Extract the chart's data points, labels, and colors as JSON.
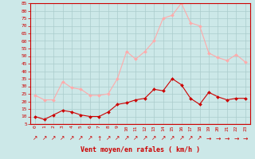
{
  "hours": [
    0,
    1,
    2,
    3,
    4,
    5,
    6,
    7,
    8,
    9,
    10,
    11,
    12,
    13,
    14,
    15,
    16,
    17,
    18,
    19,
    20,
    21,
    22,
    23
  ],
  "wind_mean": [
    10,
    8,
    11,
    14,
    13,
    11,
    10,
    10,
    13,
    18,
    19,
    21,
    22,
    28,
    27,
    35,
    31,
    22,
    18,
    26,
    23,
    21,
    22,
    22
  ],
  "wind_gust": [
    24,
    21,
    21,
    33,
    29,
    28,
    24,
    24,
    25,
    35,
    53,
    48,
    53,
    60,
    75,
    77,
    85,
    72,
    70,
    52,
    49,
    47,
    51,
    46
  ],
  "wind_arrows": [
    "↗",
    "↗",
    "↗",
    "↗",
    "↗",
    "↗",
    "↗",
    "↑",
    "↗",
    "↗",
    "↗",
    "↗",
    "↗",
    "↗",
    "↗",
    "↗",
    "↗",
    "↗",
    "↗",
    "→",
    "→",
    "→",
    "→",
    "→"
  ],
  "xlabel": "Vent moyen/en rafales ( km/h )",
  "ylim_min": 5,
  "ylim_max": 85,
  "yticks": [
    5,
    10,
    15,
    20,
    25,
    30,
    35,
    40,
    45,
    50,
    55,
    60,
    65,
    70,
    75,
    80,
    85
  ],
  "bg_color": "#cce8e8",
  "grid_color": "#aacccc",
  "mean_color": "#cc0000",
  "gust_color": "#ffaaaa",
  "arrow_color": "#cc0000",
  "xlabel_color": "#cc0000",
  "tick_color": "#cc0000",
  "axis_color": "#cc0000",
  "marker": "D",
  "markersize": 2.0,
  "linewidth": 0.8
}
